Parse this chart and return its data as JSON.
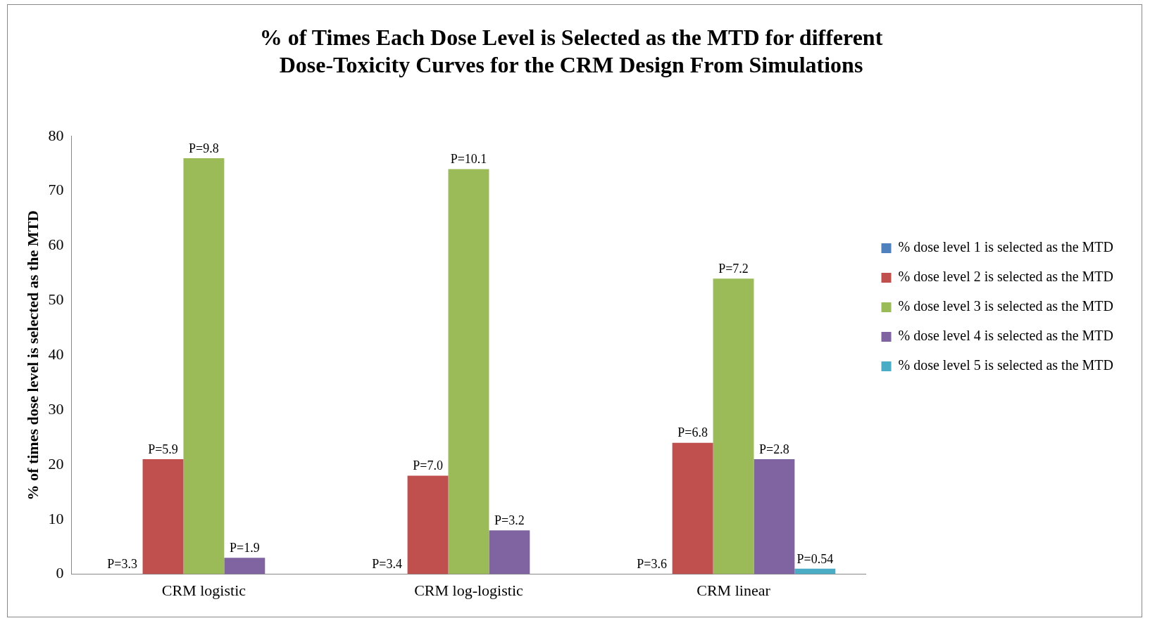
{
  "chart_data": {
    "type": "bar",
    "title": "% of Times Each Dose Level is Selected as the MTD for different Dose-Toxicity Curves for the CRM Design From Simulations",
    "ylabel": "% of times dose level is selected as the MTD",
    "categories": [
      "CRM logistic",
      "CRM log-logistic",
      "CRM linear"
    ],
    "ylim": [
      0,
      80
    ],
    "yticks": [
      0,
      10,
      20,
      30,
      40,
      50,
      60,
      70,
      80
    ],
    "grid": false,
    "legend": "right",
    "series": [
      {
        "name": "% dose level 1 is selected as the MTD",
        "color": "#4f81bd",
        "values": [
          0,
          0,
          0
        ]
      },
      {
        "name": "% dose level 2 is selected as the MTD",
        "color": "#c0504d",
        "values": [
          21,
          18,
          24
        ]
      },
      {
        "name": "% dose level 3 is selected as the MTD",
        "color": "#9bbb59",
        "values": [
          76,
          74,
          54
        ]
      },
      {
        "name": "% dose level 4 is selected as the MTD",
        "color": "#8064a2",
        "values": [
          3,
          8,
          21
        ]
      },
      {
        "name": "% dose level 5 is selected as the MTD",
        "color": "#4bacc6",
        "values": [
          0,
          0,
          1
        ]
      }
    ],
    "annotations": [
      "P=3.6",
      "P=3.4",
      "P=3.3",
      "P=6.8",
      "P=7.0",
      "P=5.9",
      "P=7.2",
      "P=10.1",
      "P=9.8",
      "P=2.8",
      "P=3.2",
      "P=1.9",
      "P=0.54"
    ]
  }
}
